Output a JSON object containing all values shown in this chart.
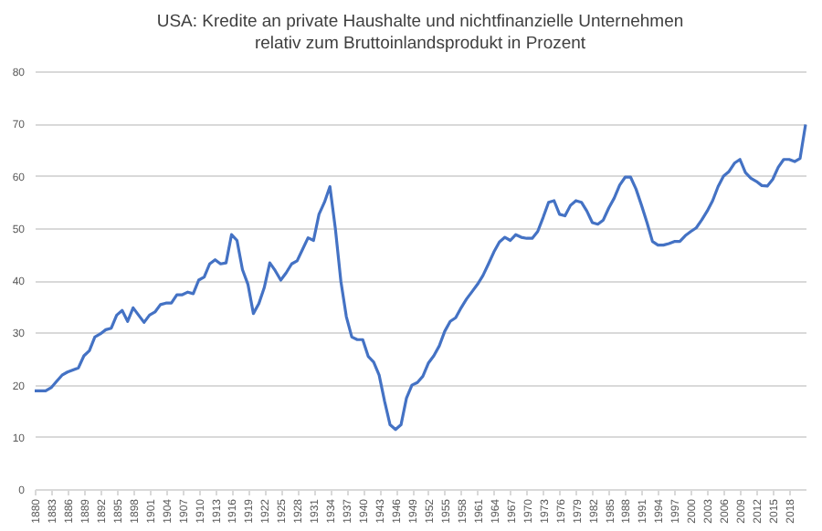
{
  "chart_data": {
    "type": "line",
    "title": [
      "USA: Kredite an private Haushalte und nichtfinanzielle Unternehmen",
      "relativ zum Bruttoinlandsprodukt in Prozent"
    ],
    "x": [
      1880,
      1881,
      1882,
      1883,
      1884,
      1885,
      1886,
      1887,
      1888,
      1889,
      1890,
      1891,
      1892,
      1893,
      1894,
      1895,
      1896,
      1897,
      1898,
      1899,
      1900,
      1901,
      1902,
      1903,
      1904,
      1905,
      1906,
      1907,
      1908,
      1909,
      1910,
      1911,
      1912,
      1913,
      1914,
      1915,
      1916,
      1917,
      1918,
      1919,
      1920,
      1921,
      1922,
      1923,
      1924,
      1925,
      1926,
      1927,
      1928,
      1929,
      1930,
      1931,
      1932,
      1933,
      1934,
      1935,
      1936,
      1937,
      1938,
      1939,
      1940,
      1941,
      1942,
      1943,
      1944,
      1945,
      1946,
      1947,
      1948,
      1949,
      1950,
      1951,
      1952,
      1953,
      1954,
      1955,
      1956,
      1957,
      1958,
      1959,
      1960,
      1961,
      1962,
      1963,
      1964,
      1965,
      1966,
      1967,
      1968,
      1969,
      1970,
      1971,
      1972,
      1973,
      1974,
      1975,
      1976,
      1977,
      1978,
      1979,
      1980,
      1981,
      1982,
      1983,
      1984,
      1985,
      1986,
      1987,
      1988,
      1989,
      1990,
      1991,
      1992,
      1993,
      1994,
      1995,
      1996,
      1997,
      1998,
      1999,
      2000,
      2001,
      2002,
      2003,
      2004,
      2005,
      2006,
      2007,
      2008,
      2009,
      2010,
      2011,
      2012,
      2013,
      2014,
      2015,
      2016,
      2017,
      2018,
      2019,
      2020,
      2021
    ],
    "series": [
      {
        "color": "#4472c4",
        "values": [
          18.8,
          18.8,
          18.8,
          19.4,
          20.6,
          21.8,
          22.4,
          22.8,
          23.2,
          25.5,
          26.5,
          29.1,
          29.7,
          30.5,
          30.8,
          33.3,
          34.2,
          32.1,
          34.7,
          33.3,
          31.9,
          33.3,
          33.9,
          35.3,
          35.6,
          35.6,
          37.2,
          37.2,
          37.7,
          37.4,
          40,
          40.6,
          43.1,
          43.9,
          43.1,
          43.3,
          48.7,
          47.6,
          42,
          39.2,
          33.6,
          35.5,
          38.6,
          43.3,
          41.8,
          40,
          41.4,
          43.1,
          43.7,
          45.9,
          48.1,
          47.6,
          52.6,
          54.9,
          57.9,
          49.8,
          39.8,
          33,
          29.1,
          28.6,
          28.6,
          25.4,
          24.3,
          21.8,
          16.8,
          12.3,
          11.4,
          12.3,
          17.4,
          19.9,
          20.4,
          21.6,
          24.1,
          25.5,
          27.4,
          30.2,
          32.1,
          32.8,
          34.7,
          36.4,
          37.8,
          39.2,
          40.9,
          43.1,
          45.4,
          47.3,
          48.2,
          47.6,
          48.7,
          48.2,
          48,
          48,
          49.3,
          52,
          54.9,
          55.2,
          52.6,
          52.3,
          54.3,
          55.2,
          54.9,
          53.2,
          51,
          50.7,
          51.5,
          53.8,
          55.7,
          58.2,
          59.7,
          59.7,
          57.4,
          54.3,
          51,
          47.4,
          46.7,
          46.7,
          47,
          47.4,
          47.4,
          48.5,
          49.3,
          50,
          51.5,
          53.2,
          55.2,
          57.9,
          59.9,
          60.8,
          62.4,
          63.1,
          60.6,
          59.5,
          58.9,
          58.1,
          58,
          59.3,
          61.6,
          63.1,
          63.1,
          62.7,
          63.3,
          69.8
        ]
      }
    ],
    "xlim": [
      1880,
      2021
    ],
    "xticks": [
      1880,
      1883,
      1886,
      1889,
      1892,
      1895,
      1898,
      1901,
      1904,
      1907,
      1910,
      1913,
      1916,
      1919,
      1922,
      1925,
      1928,
      1931,
      1934,
      1937,
      1940,
      1943,
      1946,
      1949,
      1952,
      1955,
      1958,
      1961,
      1964,
      1967,
      1970,
      1973,
      1976,
      1979,
      1982,
      1985,
      1988,
      1991,
      1994,
      1997,
      2000,
      2003,
      2006,
      2009,
      2012,
      2015,
      2018
    ],
    "ylim": [
      0,
      80
    ],
    "yticks": [
      0,
      10,
      20,
      30,
      40,
      50,
      60,
      70,
      80
    ],
    "grid": "y"
  }
}
